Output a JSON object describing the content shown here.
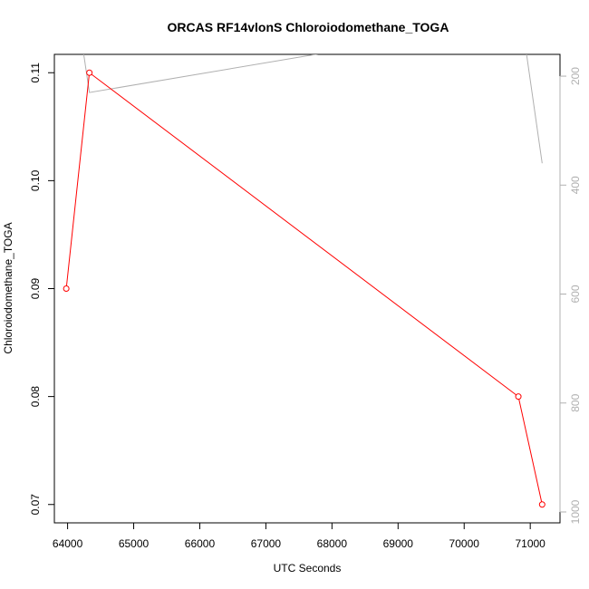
{
  "chart_data": {
    "type": "line",
    "title": "ORCAS RF14vlonS Chloroiodomethane_TOGA",
    "xlabel": "UTC Seconds",
    "ylabel": "Chloroiodomethane_TOGA",
    "xlim": [
      63800,
      71450
    ],
    "ylim": [
      0.0683,
      0.1117
    ],
    "x_ticks": [
      64000,
      65000,
      66000,
      67000,
      68000,
      69000,
      70000,
      71000
    ],
    "y_ticks": [
      0.07,
      0.08,
      0.09,
      0.1,
      0.11
    ],
    "y_tick_labels": [
      "0.07",
      "0.08",
      "0.09",
      "0.10",
      "0.11"
    ],
    "series": [
      {
        "color": "#ff0000",
        "marker": "open-circle",
        "points": [
          {
            "x": 63980,
            "y": 0.09
          },
          {
            "x": 64330,
            "y": 0.11
          },
          {
            "x": 70820,
            "y": 0.08
          },
          {
            "x": 71180,
            "y": 0.07
          }
        ]
      }
    ],
    "secondary_axis": {
      "side": "right",
      "color": "#b0b0b0",
      "inverted": true,
      "ylim": [
        1020,
        160
      ],
      "ticks": [
        200,
        400,
        600,
        800,
        1000
      ],
      "series": {
        "color": "#b0b0b0",
        "points": [
          {
            "x": 64000,
            "y": -40
          },
          {
            "x": 64330,
            "y": 230
          },
          {
            "x": 68000,
            "y": 155
          },
          {
            "x": 70850,
            "y": 80
          },
          {
            "x": 71180,
            "y": 360
          }
        ]
      }
    },
    "grid": false,
    "legend": "none"
  }
}
